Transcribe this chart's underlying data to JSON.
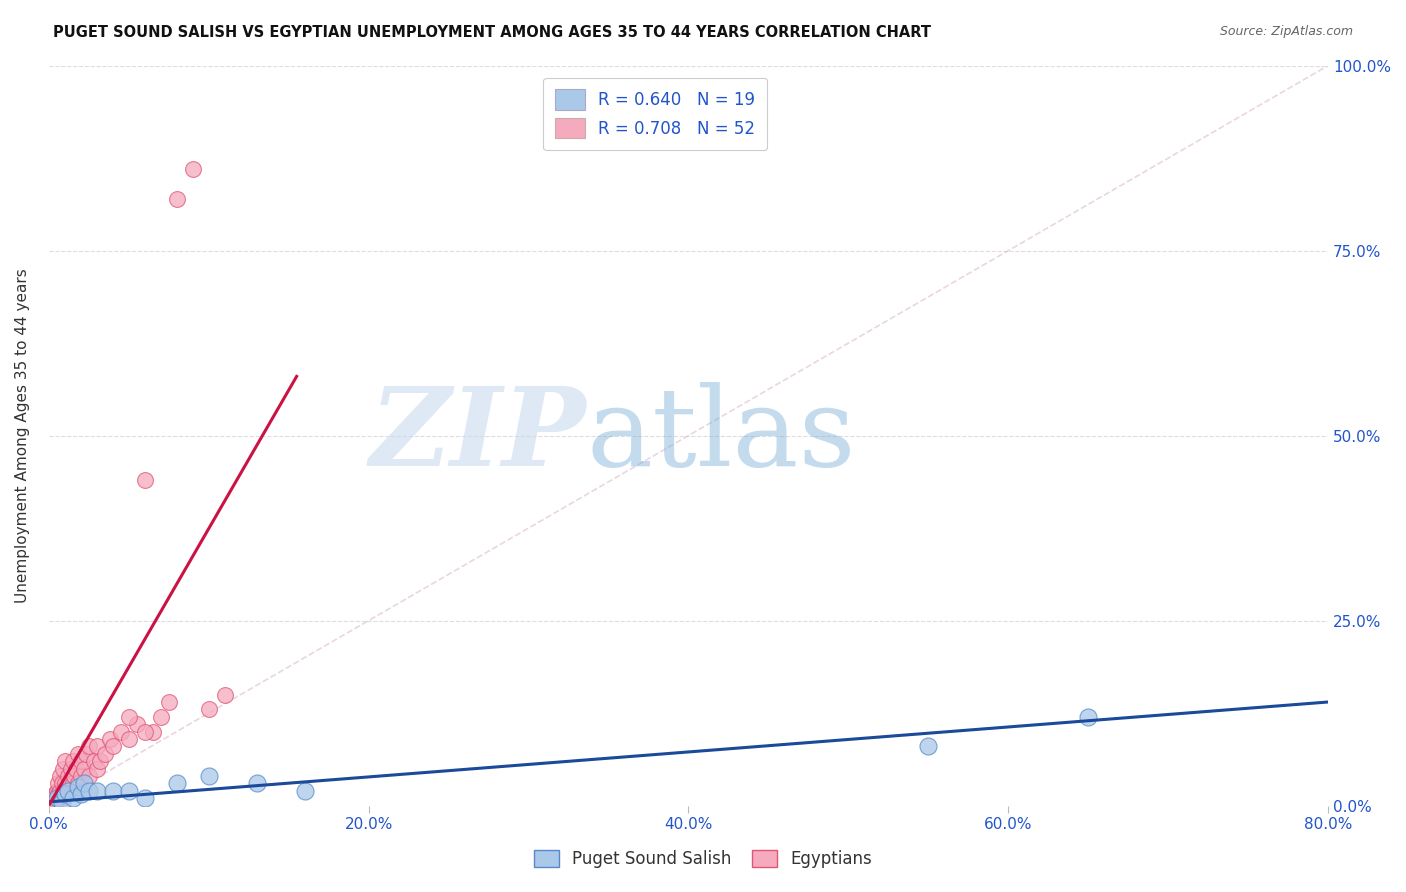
{
  "title": "PUGET SOUND SALISH VS EGYPTIAN UNEMPLOYMENT AMONG AGES 35 TO 44 YEARS CORRELATION CHART",
  "source": "Source: ZipAtlas.com",
  "ylabel_left": "Unemployment Among Ages 35 to 44 years",
  "x_tick_labels": [
    "0.0%",
    "20.0%",
    "40.0%",
    "60.0%",
    "80.0%"
  ],
  "x_tick_values": [
    0.0,
    0.2,
    0.4,
    0.6,
    0.8
  ],
  "y_tick_labels_right": [
    "100.0%",
    "75.0%",
    "50.0%",
    "25.0%",
    "0.0%"
  ],
  "y_tick_values_right": [
    1.0,
    0.75,
    0.5,
    0.25,
    0.0
  ],
  "xlim": [
    0.0,
    0.8
  ],
  "ylim": [
    0.0,
    1.0
  ],
  "puget_color": "#aac8e8",
  "egyptian_color": "#f5aabe",
  "puget_edge_color": "#5588cc",
  "egyptian_edge_color": "#e05575",
  "line_puget_color": "#1a4a99",
  "line_egyptian_color": "#cc1144",
  "legend_R_puget": "R = 0.640",
  "legend_N_puget": "N = 19",
  "legend_R_egyptian": "R = 0.708",
  "legend_N_egyptian": "N = 52",
  "legend_label_puget": "Puget Sound Salish",
  "legend_label_egyptian": "Egyptians",
  "watermark_zip": "ZIP",
  "watermark_atlas": "atlas",
  "background_color": "#ffffff",
  "puget_scatter_x": [
    0.005,
    0.008,
    0.01,
    0.012,
    0.015,
    0.018,
    0.02,
    0.022,
    0.025,
    0.03,
    0.04,
    0.05,
    0.06,
    0.08,
    0.1,
    0.13,
    0.16,
    0.55,
    0.65
  ],
  "puget_scatter_y": [
    0.01,
    0.005,
    0.015,
    0.02,
    0.01,
    0.025,
    0.015,
    0.03,
    0.02,
    0.02,
    0.02,
    0.02,
    0.01,
    0.03,
    0.04,
    0.03,
    0.02,
    0.08,
    0.12
  ],
  "egyptian_scatter_x": [
    0.002,
    0.003,
    0.004,
    0.005,
    0.005,
    0.006,
    0.006,
    0.007,
    0.007,
    0.008,
    0.008,
    0.009,
    0.009,
    0.01,
    0.01,
    0.01,
    0.012,
    0.012,
    0.013,
    0.014,
    0.015,
    0.015,
    0.016,
    0.017,
    0.018,
    0.018,
    0.02,
    0.02,
    0.022,
    0.023,
    0.025,
    0.025,
    0.028,
    0.03,
    0.03,
    0.032,
    0.035,
    0.038,
    0.04,
    0.045,
    0.05,
    0.055,
    0.06,
    0.065,
    0.07,
    0.075,
    0.08,
    0.09,
    0.1,
    0.11,
    0.05,
    0.06
  ],
  "egyptian_scatter_y": [
    0.01,
    0.005,
    0.015,
    0.01,
    0.02,
    0.015,
    0.03,
    0.02,
    0.04,
    0.01,
    0.03,
    0.02,
    0.05,
    0.015,
    0.03,
    0.06,
    0.02,
    0.04,
    0.03,
    0.05,
    0.03,
    0.06,
    0.04,
    0.05,
    0.03,
    0.07,
    0.04,
    0.06,
    0.05,
    0.07,
    0.04,
    0.08,
    0.06,
    0.05,
    0.08,
    0.06,
    0.07,
    0.09,
    0.08,
    0.1,
    0.09,
    0.11,
    0.44,
    0.1,
    0.12,
    0.14,
    0.82,
    0.86,
    0.13,
    0.15,
    0.12,
    0.1
  ],
  "puget_line_x": [
    0.0,
    0.8
  ],
  "puget_line_y": [
    0.005,
    0.14
  ],
  "egyptian_line_x": [
    0.0,
    0.155
  ],
  "egyptian_line_y": [
    0.0,
    0.58
  ],
  "diagonal_line_x": [
    0.0,
    0.8
  ],
  "diagonal_line_y": [
    0.0,
    1.0
  ],
  "grid_color": "#dddddd",
  "right_axis_color": "#2255cc"
}
